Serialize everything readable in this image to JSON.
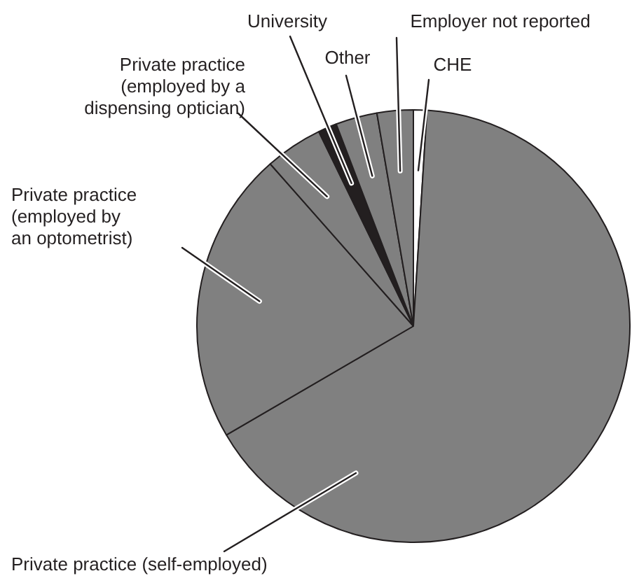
{
  "chart_data": {
    "type": "pie",
    "categories": [
      "CHE",
      "Private practice (self-employed)",
      "Private practice (employed by an optometrist)",
      "Private practice (employed by a dispensing optician)",
      "University",
      "Other",
      "Employer not reported"
    ],
    "values": [
      1.0,
      65.6,
      21.9,
      4.3,
      1.4,
      3.1,
      2.7
    ],
    "colors": [
      "#ffffff",
      "#808080",
      "#808080",
      "#808080",
      "#231f20",
      "#808080",
      "#808080"
    ],
    "legend": false
  }
}
